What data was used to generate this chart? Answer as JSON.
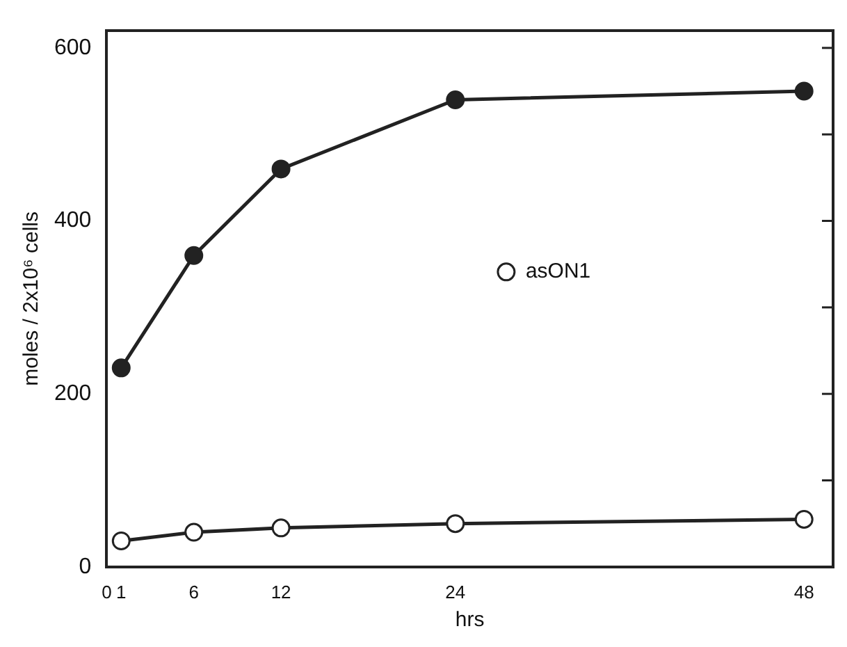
{
  "chart_data": {
    "type": "line",
    "xlabel": "hrs",
    "ylabel": "moles / 2x10⁶ cells",
    "x": [
      1,
      6,
      12,
      24,
      48
    ],
    "series": [
      {
        "color": "#222222",
        "values": [
          230,
          360,
          460,
          540,
          550
        ]
      },
      {
        "name": "asON1",
        "color": "#222222",
        "values": [
          30,
          40,
          45,
          50,
          55
        ]
      }
    ],
    "xlim": [
      0,
      50
    ],
    "xticks": [
      {
        "value": 0,
        "label": "0"
      },
      1,
      6,
      12,
      24,
      48
    ],
    "ylim": [
      0,
      620
    ],
    "yticks": [
      0,
      {
        "value": 100,
        "label": null
      },
      200,
      {
        "value": 300,
        "label": null
      },
      400,
      {
        "value": 500,
        "label": null
      },
      600
    ],
    "grid": false,
    "legend": "right",
    "marker": "circle",
    "line_style": "solid"
  }
}
